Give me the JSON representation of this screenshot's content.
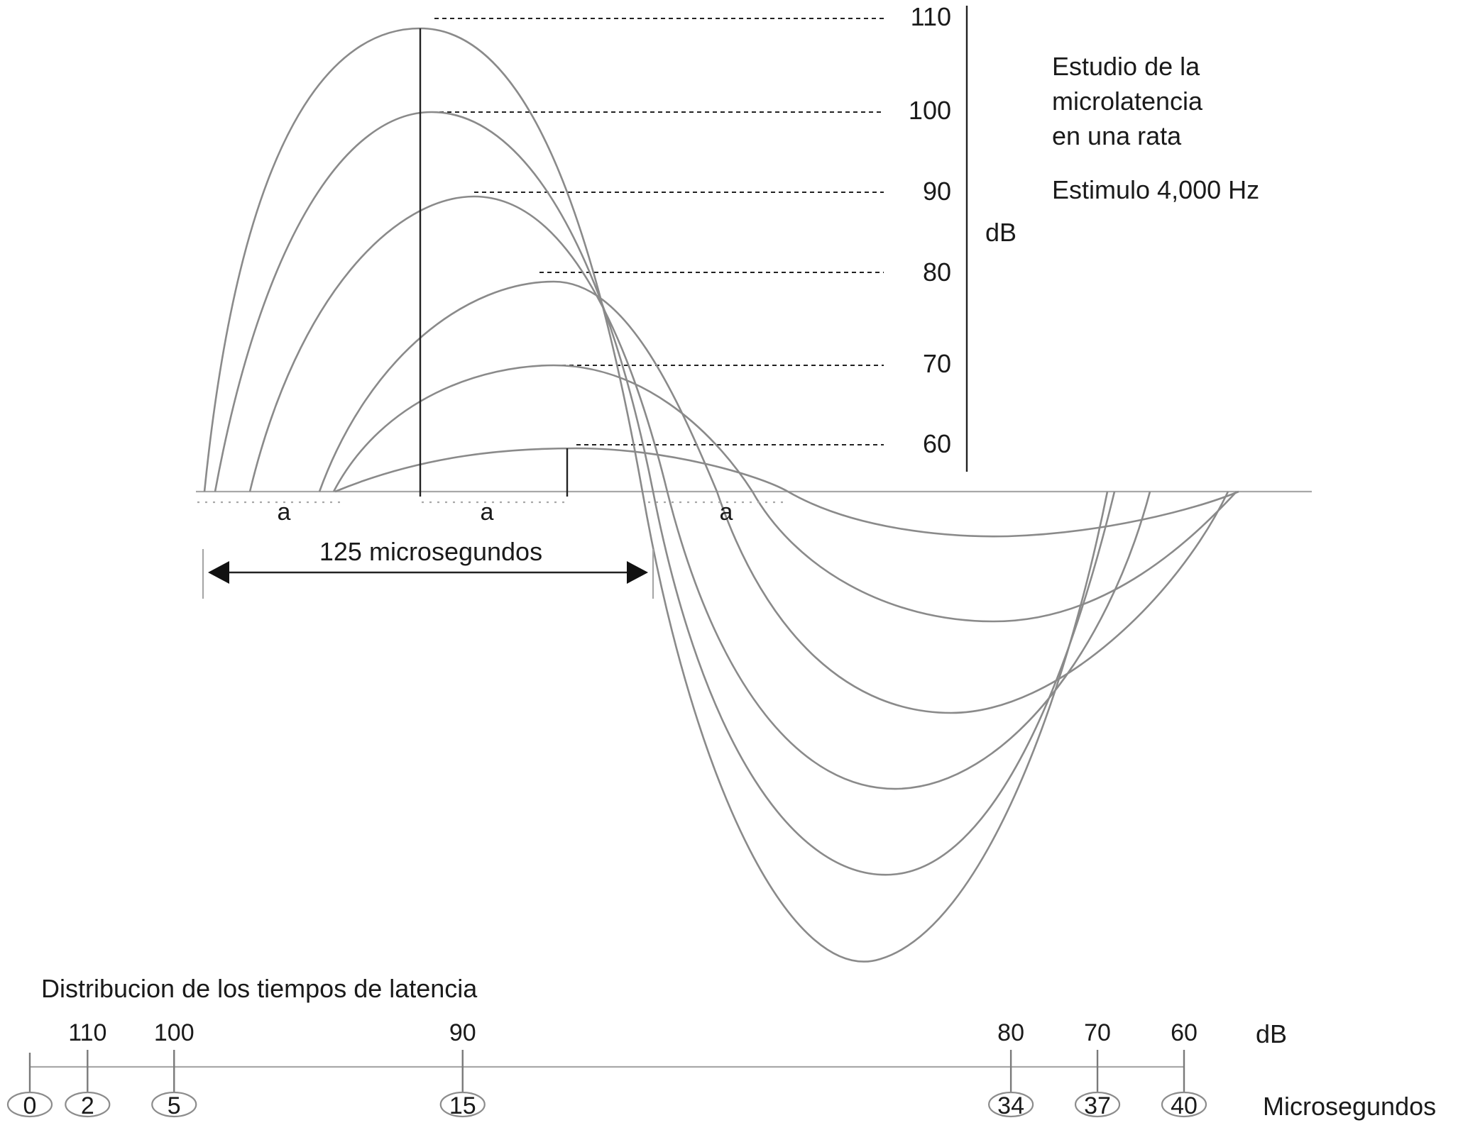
{
  "scale_labels": [
    "110",
    "100",
    "90",
    "80",
    "70",
    "60"
  ],
  "scale_unit": "dB",
  "study": {
    "line1": "Estudio de la",
    "line2": "microlatencia",
    "line3": "en una rata",
    "stimulus": "Estimulo 4,000 Hz"
  },
  "segment_label": "a",
  "period_label": "125 microsegundos",
  "distribution": {
    "title": "Distribucion de los tiempos de latencia",
    "db_unit": "dB",
    "time_unit": "Microsegundos",
    "entries": [
      {
        "db": "",
        "us": "0",
        "value": 0
      },
      {
        "db": "110",
        "us": "2",
        "value": 2
      },
      {
        "db": "100",
        "us": "5",
        "value": 5
      },
      {
        "db": "90",
        "us": "15",
        "value": 15
      },
      {
        "db": "80",
        "us": "34",
        "value": 34
      },
      {
        "db": "70",
        "us": "37",
        "value": 37
      },
      {
        "db": "60",
        "us": "40",
        "value": 40
      }
    ]
  },
  "colors": {
    "curve": "#8a8a8a",
    "line": "#222222",
    "text": "#1a1a1a"
  }
}
